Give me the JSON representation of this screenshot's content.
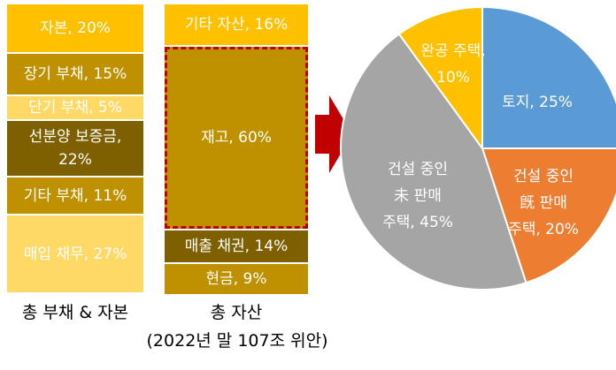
{
  "left_bar": {
    "caption": "총 부채 & 자본",
    "segments": [
      {
        "lines": [
          "자본, 20%"
        ],
        "color": "#FFC000"
      },
      {
        "lines": [
          "장기 부채, 15%"
        ],
        "color": "#BF9000"
      },
      {
        "lines": [
          "단기 부채, 5%"
        ],
        "color": "#FFD966"
      },
      {
        "lines": [
          "선분양 보증금,",
          "22%"
        ],
        "color": "#7F6000"
      },
      {
        "lines": [
          "기타 부채, 11%"
        ],
        "color": "#BF9000"
      },
      {
        "lines": [
          "매입 채무, 27%"
        ],
        "color": "#FFD966"
      }
    ]
  },
  "right_bar": {
    "caption_line1": "총 자산",
    "caption_line2": "(2022년 말 107조 위안)",
    "segments": [
      {
        "lines": [
          "기타 자산, 16%"
        ],
        "color": "#FFC000"
      },
      {
        "lines": [
          "재고, 60%"
        ],
        "color": "#BF9000",
        "highlighted": true
      },
      {
        "lines": [
          "매출 채권, 14%"
        ],
        "color": "#7F6000"
      },
      {
        "lines": [
          "현금, 9%"
        ],
        "color": "#BF9000"
      }
    ]
  },
  "arrow": {
    "color": "#C00000"
  },
  "chart_data": {
    "type": "pie",
    "slices": [
      {
        "label_lines": [
          "토지, 25%"
        ],
        "value": 25,
        "color": "#5B9BD5"
      },
      {
        "label_lines": [
          "건설 중인",
          "旣 판매",
          "주택, 20%"
        ],
        "value": 20,
        "color": "#ED7D31"
      },
      {
        "label_lines": [
          "건설 중인",
          "未 판매",
          "주택, 45%"
        ],
        "value": 45,
        "color": "#A5A5A5"
      },
      {
        "label_lines": [
          "완공 주택,",
          "10%"
        ],
        "value": 10,
        "color": "#FFC000"
      }
    ]
  }
}
